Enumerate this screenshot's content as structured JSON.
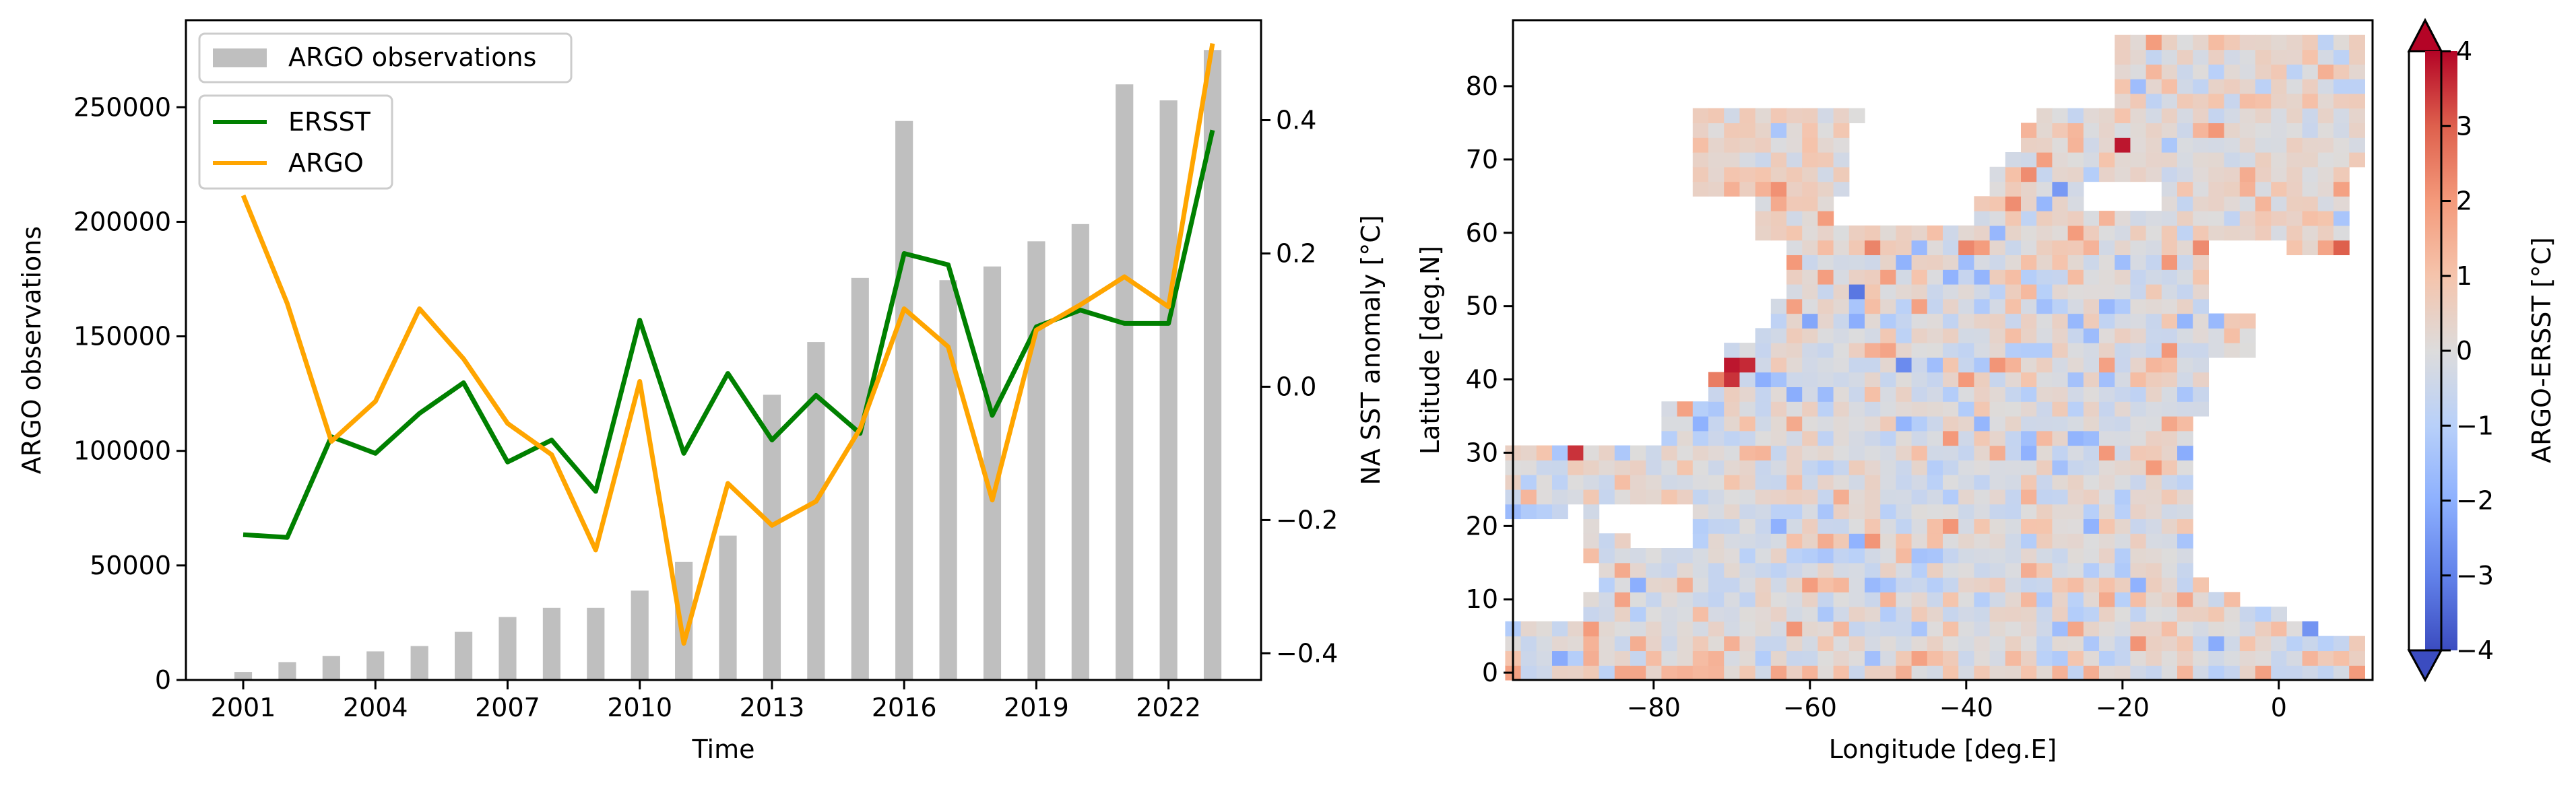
{
  "chart_data": [
    {
      "type": "bar+line",
      "xlabel": "Time",
      "ylabel_left": "ARGO observations",
      "ylabel_right": "NA SST anomaly [°C]",
      "x": [
        2001,
        2002,
        2003,
        2004,
        2005,
        2006,
        2007,
        2008,
        2009,
        2010,
        2011,
        2012,
        2013,
        2014,
        2015,
        2016,
        2017,
        2018,
        2019,
        2020,
        2021,
        2022,
        2023
      ],
      "x_ticks": [
        2001,
        2004,
        2007,
        2010,
        2013,
        2016,
        2019,
        2022
      ],
      "x_tick_labels": [
        "2001",
        "2004",
        "2007",
        "2010",
        "2013",
        "2016",
        "2019",
        "2022"
      ],
      "xlim": [
        1999.7,
        2024.1
      ],
      "ylim_left": [
        0,
        288000
      ],
      "y_ticks_left": [
        0,
        50000,
        100000,
        150000,
        200000,
        250000
      ],
      "y_tick_labels_left": [
        "0",
        "50000",
        "100000",
        "150000",
        "200000",
        "250000"
      ],
      "ylim_right": [
        -0.44,
        0.55
      ],
      "y_ticks_right": [
        -0.4,
        -0.2,
        0.0,
        0.2,
        0.4
      ],
      "y_tick_labels_right": [
        "−0.4",
        "−0.2",
        "0.0",
        "0.2",
        "0.4"
      ],
      "bars": {
        "name": "ARGO observations",
        "color": "#bfbfbf",
        "values": [
          3500,
          7800,
          10500,
          12500,
          14800,
          21000,
          27500,
          31500,
          31500,
          39000,
          51500,
          63000,
          124500,
          147500,
          175500,
          244000,
          174500,
          180500,
          191500,
          199000,
          260000,
          253000,
          275000
        ]
      },
      "series": [
        {
          "name": "ERSST",
          "color": "#008000",
          "values": [
            -0.222,
            -0.226,
            -0.075,
            -0.1,
            -0.04,
            0.006,
            -0.113,
            -0.08,
            -0.157,
            0.1,
            -0.1,
            0.02,
            -0.08,
            -0.013,
            -0.07,
            0.2,
            0.183,
            -0.043,
            0.09,
            0.115,
            0.095,
            0.095,
            0.385
          ]
        },
        {
          "name": "ARGO",
          "color": "#ffa500",
          "values": [
            0.287,
            0.125,
            -0.082,
            -0.022,
            0.117,
            0.042,
            -0.055,
            -0.102,
            -0.245,
            0.008,
            -0.385,
            -0.145,
            -0.208,
            -0.172,
            -0.063,
            0.117,
            0.06,
            -0.17,
            0.085,
            0.123,
            0.165,
            0.12,
            0.515
          ]
        }
      ],
      "legend": {
        "bars": "upper-left",
        "lines": "upper-left, below bar legend"
      },
      "grid": false
    },
    {
      "type": "heatmap",
      "xlabel": "Longitude [deg.E]",
      "ylabel": "Latitude [deg.N]",
      "xlim": [
        -98,
        12
      ],
      "ylim": [
        -1,
        89
      ],
      "x_ticks": [
        -80,
        -60,
        -40,
        -20,
        0
      ],
      "x_tick_labels": [
        "−80",
        "−60",
        "−40",
        "−20",
        "0"
      ],
      "y_ticks": [
        0,
        10,
        20,
        30,
        40,
        50,
        60,
        70,
        80
      ],
      "y_tick_labels": [
        "0",
        "10",
        "20",
        "30",
        "40",
        "50",
        "60",
        "70",
        "80"
      ],
      "grid_spacing_deg": 2,
      "colorbar": {
        "label": "ARGO-ERSST [°C]",
        "cmap": "coolwarm",
        "vmin": -4,
        "vmax": 4,
        "ticks": [
          -4,
          -3,
          -2,
          -1,
          0,
          1,
          2,
          3,
          4
        ],
        "tick_labels": [
          "−4",
          "−3",
          "−2",
          "−1",
          "0",
          "1",
          "2",
          "3",
          "4"
        ],
        "extend": "both"
      },
      "values_summary": "Mostly near 0 (−1 to +1) over the North Atlantic; strongest positive anomalies ~+3 to +4 near 70°W 40°N (Gulf Stream) and ~+3 near 90°W 30°N, 20°W 72°N; negative anomalies down to ~−3 scattered, e.g. near 55°W 53°N.",
      "hotspots": [
        {
          "lon": -70,
          "lat": 42,
          "value": 3.8
        },
        {
          "lon": -68,
          "lat": 42,
          "value": 3.6
        },
        {
          "lon": -70,
          "lat": 40,
          "value": 3.5
        },
        {
          "lon": -72,
          "lat": 40,
          "value": 2.5
        },
        {
          "lon": -90,
          "lat": 30,
          "value": 3.5
        },
        {
          "lon": -20,
          "lat": 72,
          "value": 3.8
        },
        {
          "lon": 8,
          "lat": 58,
          "value": 3.0
        },
        {
          "lon": -54,
          "lat": 52,
          "value": -3.2
        },
        {
          "lon": -48,
          "lat": 42,
          "value": -2.8
        },
        {
          "lon": 4,
          "lat": 6,
          "value": -2.6
        },
        {
          "lon": -60,
          "lat": 48,
          "value": -2.2
        },
        {
          "lon": -28,
          "lat": 66,
          "value": -2.5
        }
      ]
    }
  ]
}
